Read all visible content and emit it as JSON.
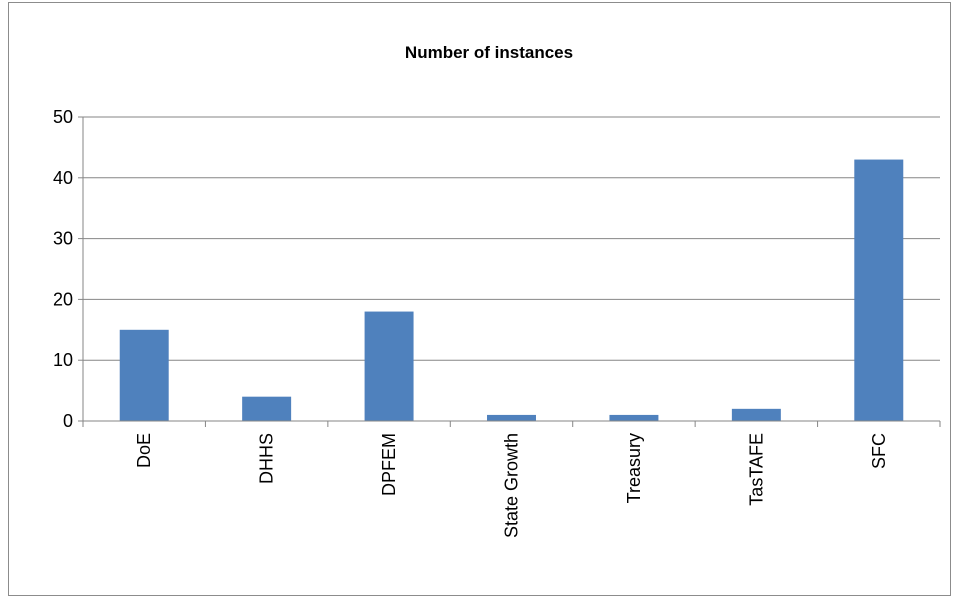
{
  "chart_data": {
    "type": "bar",
    "title": "Number of instances",
    "xlabel": "",
    "ylabel": "",
    "categories": [
      "DoE",
      "DHHS",
      "DPFEM",
      "State Growth",
      "Treasury",
      "TasTAFE",
      "SFC"
    ],
    "values": [
      15,
      4,
      18,
      1,
      1,
      2,
      43
    ],
    "ylim": [
      0,
      50
    ],
    "yticks": [
      0,
      10,
      20,
      30,
      40,
      50
    ],
    "grid": true,
    "legend": "none",
    "bar_color": "#4f81bd",
    "grid_color": "#868686"
  }
}
